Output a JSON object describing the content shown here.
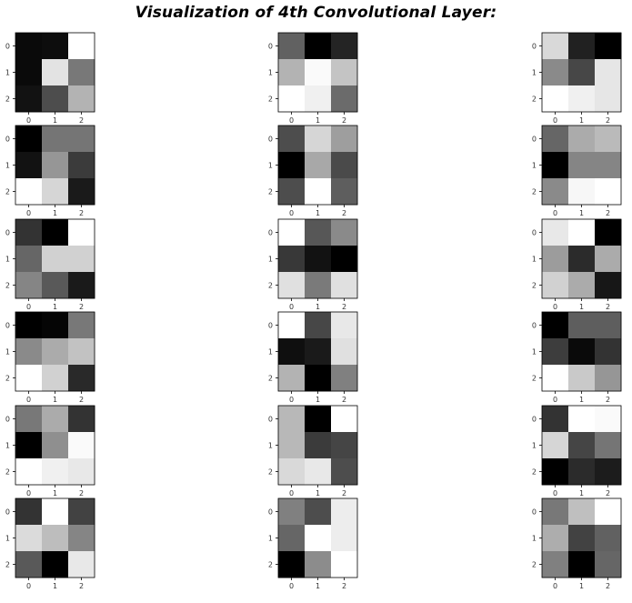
{
  "title": "Visualization of 4th Convolutional Layer:",
  "chart_data": {
    "type": "heatmap",
    "title": "Visualization of 4th Convolutional Layer:",
    "colormap": "gray",
    "value_range": [
      0,
      1
    ],
    "grid": "off",
    "layout": {
      "rows": 6,
      "cols": 3
    },
    "x_ticks": [
      "0",
      "1",
      "2"
    ],
    "y_ticks": [
      "0",
      "1",
      "2"
    ],
    "panels": [
      [
        [
          0.04,
          0.05,
          1.0
        ],
        [
          0.04,
          0.89,
          0.47
        ],
        [
          0.07,
          0.3,
          0.7
        ]
      ],
      [
        [
          0.38,
          0.0,
          0.14
        ],
        [
          0.7,
          0.98,
          0.77
        ],
        [
          1.0,
          0.94,
          0.42
        ]
      ],
      [
        [
          0.85,
          0.13,
          0.0
        ],
        [
          0.54,
          0.28,
          0.9
        ],
        [
          1.0,
          0.94,
          0.9
        ]
      ],
      [
        [
          0.0,
          0.46,
          0.46
        ],
        [
          0.07,
          0.59,
          0.23
        ],
        [
          1.0,
          0.84,
          0.1
        ]
      ],
      [
        [
          0.3,
          0.84,
          0.62
        ],
        [
          0.0,
          0.66,
          0.29
        ],
        [
          0.3,
          1.0,
          0.37
        ]
      ],
      [
        [
          0.4,
          0.67,
          0.73
        ],
        [
          0.0,
          0.52,
          0.52
        ],
        [
          0.54,
          0.97,
          1.0
        ]
      ],
      [
        [
          0.2,
          0.0,
          1.0
        ],
        [
          0.4,
          0.82,
          0.82
        ],
        [
          0.52,
          0.35,
          0.1
        ]
      ],
      [
        [
          1.0,
          0.34,
          0.54
        ],
        [
          0.22,
          0.07,
          0.0
        ],
        [
          0.88,
          0.48,
          0.88
        ]
      ],
      [
        [
          0.91,
          1.0,
          0.0
        ],
        [
          0.61,
          0.17,
          0.67
        ],
        [
          0.82,
          0.67,
          0.09
        ]
      ],
      [
        [
          0.0,
          0.02,
          0.47
        ],
        [
          0.54,
          0.67,
          0.76
        ],
        [
          1.0,
          0.82,
          0.16
        ]
      ],
      [
        [
          1.0,
          0.28,
          0.91
        ],
        [
          0.06,
          0.1,
          0.88
        ],
        [
          0.7,
          0.0,
          0.5
        ]
      ],
      [
        [
          0.0,
          0.37,
          0.37
        ],
        [
          0.24,
          0.04,
          0.2
        ],
        [
          1.0,
          0.79,
          0.59
        ]
      ],
      [
        [
          0.47,
          0.67,
          0.2
        ],
        [
          0.0,
          0.56,
          0.98
        ],
        [
          1.0,
          0.94,
          0.91
        ]
      ],
      [
        [
          0.72,
          0.0,
          1.0
        ],
        [
          0.72,
          0.23,
          0.27
        ],
        [
          0.85,
          0.91,
          0.3
        ]
      ],
      [
        [
          0.2,
          1.0,
          0.98
        ],
        [
          0.84,
          0.27,
          0.46
        ],
        [
          0.0,
          0.17,
          0.11
        ]
      ],
      [
        [
          0.2,
          1.0,
          0.26
        ],
        [
          0.86,
          0.74,
          0.52
        ],
        [
          0.35,
          0.0,
          0.91
        ]
      ],
      [
        [
          0.5,
          0.3,
          0.93
        ],
        [
          0.4,
          1.0,
          0.93
        ],
        [
          0.0,
          0.55,
          1.0
        ]
      ],
      [
        [
          0.47,
          0.75,
          1.0
        ],
        [
          0.68,
          0.26,
          0.38
        ],
        [
          0.5,
          0.0,
          0.4
        ]
      ]
    ]
  }
}
